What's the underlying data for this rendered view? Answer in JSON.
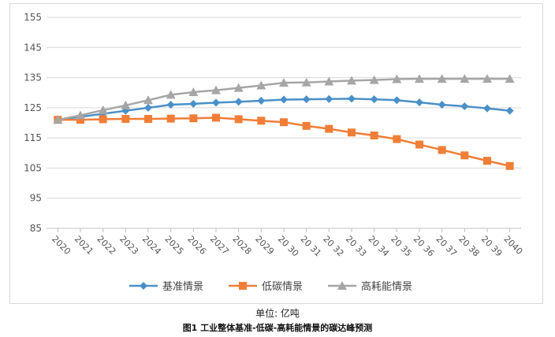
{
  "chart_data": {
    "type": "line",
    "x": [
      "2020",
      "2021",
      "2022",
      "2023",
      "2024",
      "2025",
      "2026",
      "2027",
      "2028",
      "2029",
      "2030",
      "2031",
      "2032",
      "2033",
      "2034",
      "2035",
      "2036",
      "2037",
      "2038",
      "2039",
      "2040"
    ],
    "xtick_labels": [
      "2020",
      "2021",
      "2022",
      "2023",
      "2024",
      "2025",
      "2026",
      "2027",
      "2028",
      "2029",
      "20 30",
      "20 31",
      "20 32",
      "20 33",
      "20 34",
      "20 35",
      "20 36",
      "20 37",
      "20 38",
      "20 39",
      "2040"
    ],
    "yticks": [
      85,
      95,
      105,
      115,
      125,
      135,
      145,
      155
    ],
    "ylim": [
      85,
      155
    ],
    "grid": true,
    "legend_position": "bottom",
    "series": [
      {
        "name": "基准情景",
        "color": "#4a90c8",
        "marker": "diamond",
        "values": [
          121.0,
          122.0,
          123.0,
          124.0,
          125.0,
          126.0,
          126.3,
          126.7,
          127.0,
          127.3,
          127.7,
          127.8,
          127.9,
          128.0,
          127.8,
          127.5,
          126.8,
          126.0,
          125.5,
          124.8,
          124.0
        ]
      },
      {
        "name": "低碳情景",
        "color": "#f07e36",
        "marker": "square",
        "values": [
          121.0,
          121.0,
          121.2,
          121.3,
          121.3,
          121.4,
          121.5,
          121.7,
          121.2,
          120.7,
          120.2,
          119.0,
          118.0,
          116.8,
          115.8,
          114.6,
          112.8,
          111.0,
          109.2,
          107.4,
          105.7
        ]
      },
      {
        "name": "高耗能情景",
        "color": "#a6a6a6",
        "marker": "triangle",
        "values": [
          121.0,
          122.5,
          124.2,
          125.8,
          127.5,
          129.3,
          130.2,
          130.8,
          131.6,
          132.4,
          133.3,
          133.4,
          133.7,
          134.0,
          134.2,
          134.5,
          134.6,
          134.6,
          134.6,
          134.6,
          134.6
        ]
      }
    ]
  },
  "unit_label": "单位: 亿吨",
  "caption": "图1 工业整体基准-低碳-高耗能情景的碳达峰预测"
}
